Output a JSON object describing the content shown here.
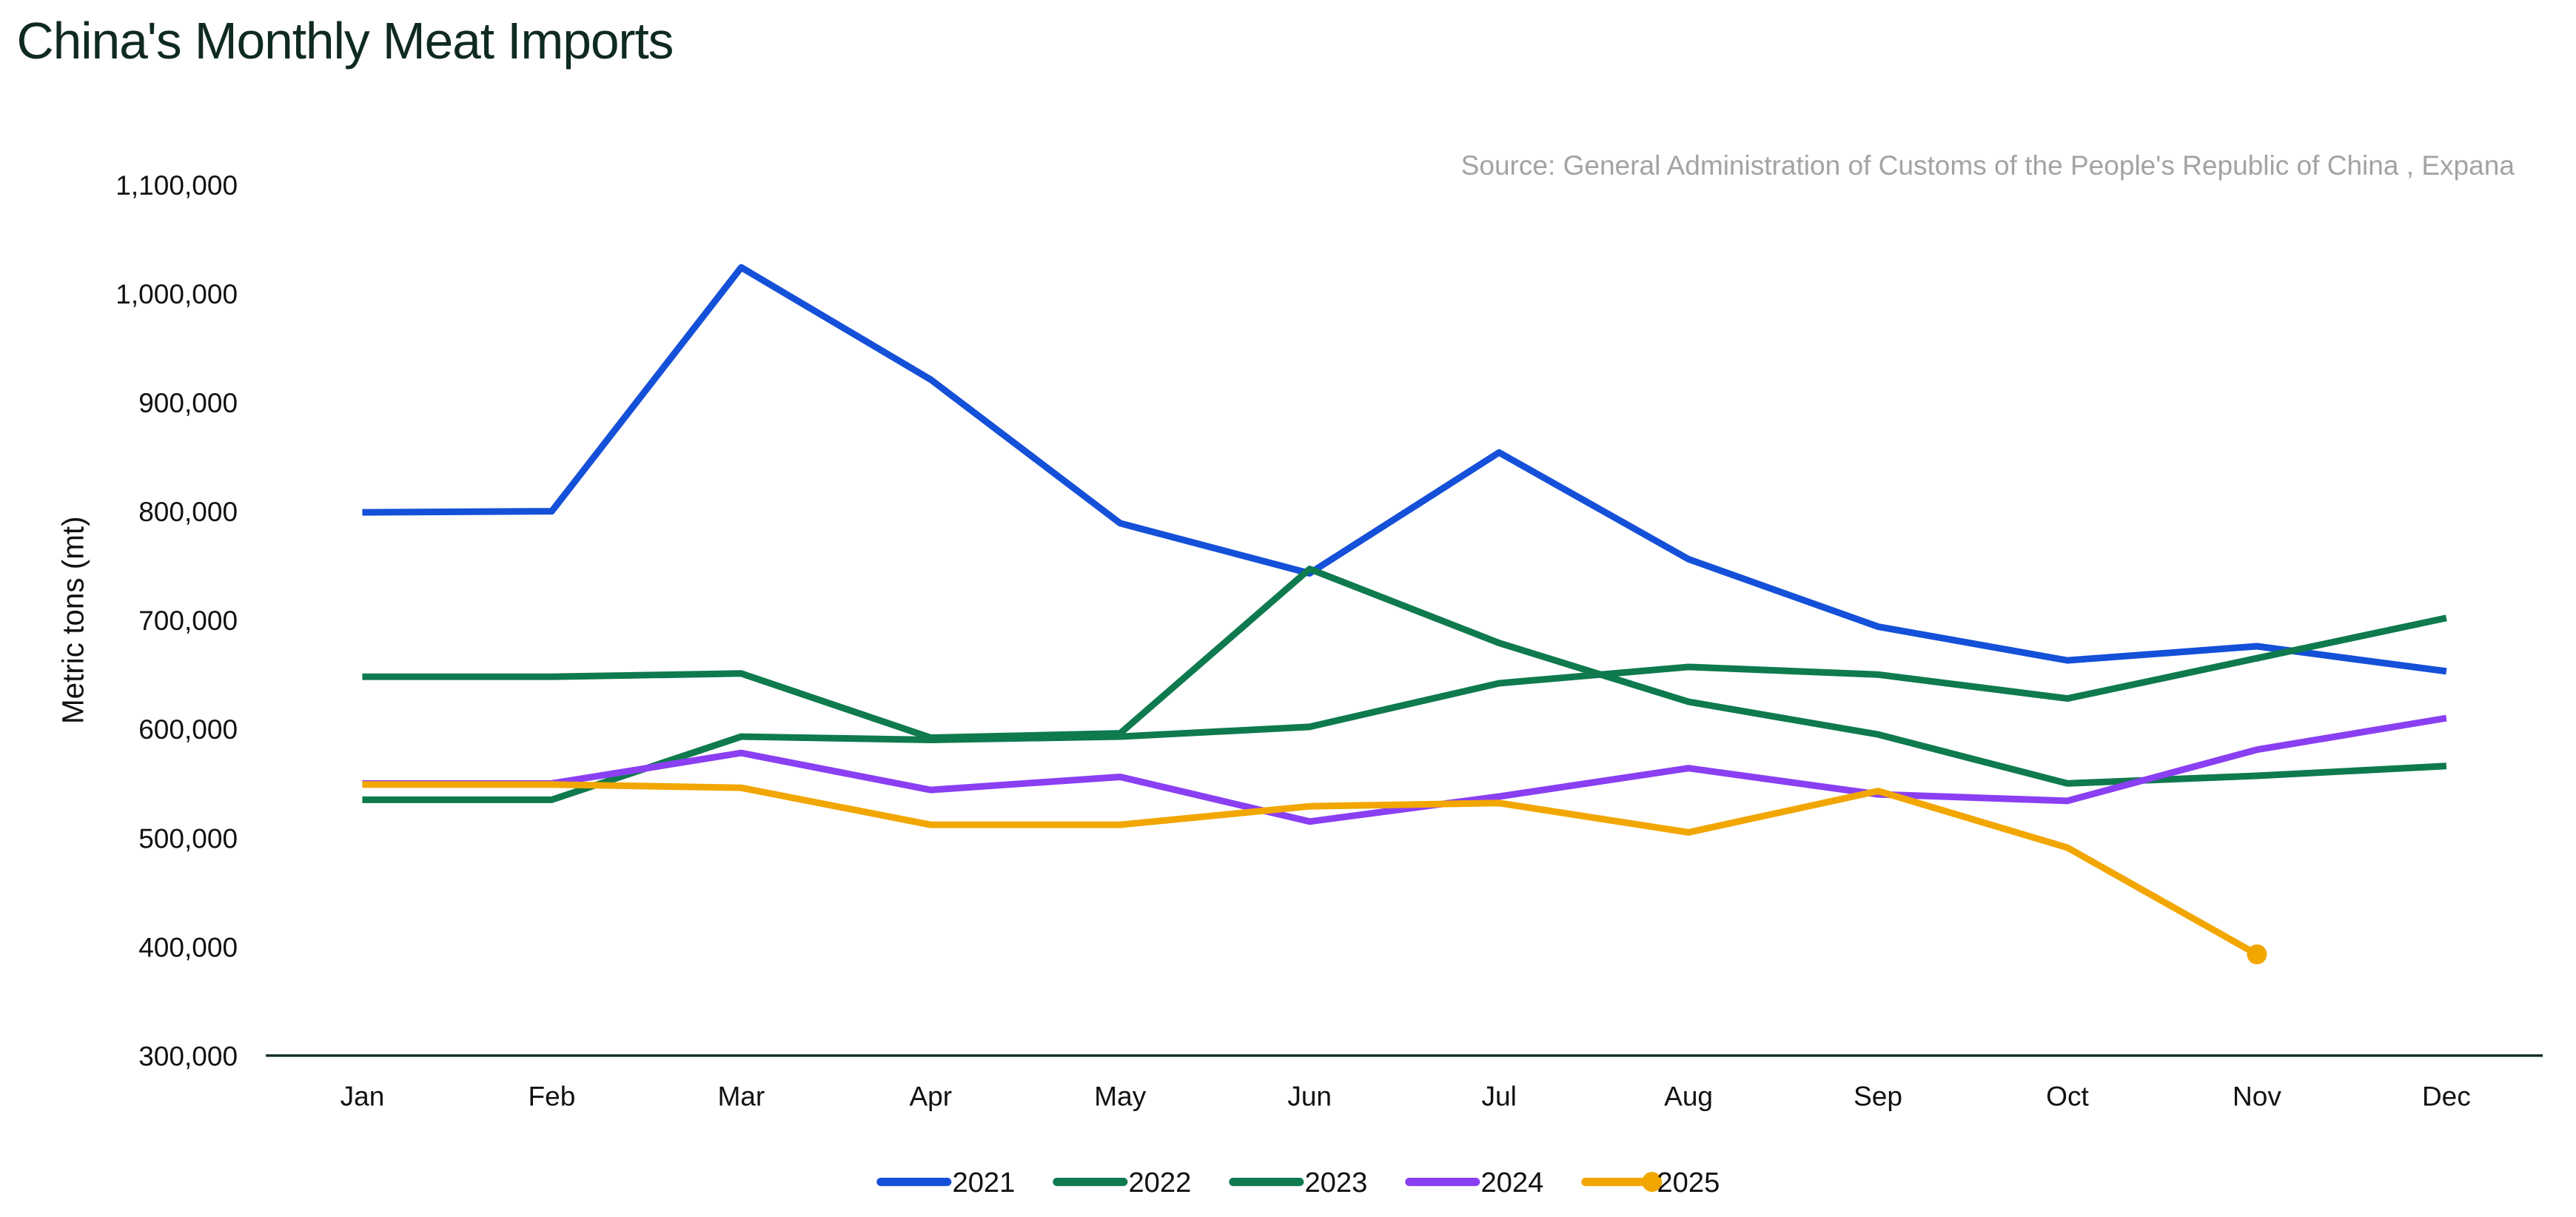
{
  "chart_data": {
    "type": "line",
    "title": "China's Monthly Meat Imports",
    "source": "Source: General Administration of Customs of the People's Republic of China , Expana",
    "xlabel": "",
    "ylabel": "Metric  tons (mt)",
    "ylim": [
      300000,
      1100000
    ],
    "yticks": [
      300000,
      400000,
      500000,
      600000,
      700000,
      800000,
      900000,
      1000000,
      1100000
    ],
    "ytick_labels": [
      "300,000",
      "400,000",
      "500,000",
      "600,000",
      "700,000",
      "800,000",
      "900,000",
      "1,000,000",
      "1,100,000"
    ],
    "categories": [
      "Jan",
      "Feb",
      "Mar",
      "Apr",
      "May",
      "Jun",
      "Jul",
      "Aug",
      "Sep",
      "Oct",
      "Nov",
      "Dec"
    ],
    "grid": false,
    "legend": "bottom-center",
    "series": [
      {
        "name": "2021",
        "color": "#1450d8",
        "values": [
          799000,
          800000,
          1024000,
          921000,
          789000,
          743000,
          854000,
          756000,
          694000,
          663000,
          676000,
          653000
        ]
      },
      {
        "name": "2022",
        "color": "#0e7a4e",
        "values": [
          648000,
          648000,
          651000,
          592000,
          596000,
          747000,
          679000,
          625000,
          595000,
          550000,
          557000,
          566000
        ]
      },
      {
        "name": "2023",
        "color": "#0e7a4e",
        "values": [
          535000,
          535000,
          593000,
          590000,
          593000,
          602000,
          642000,
          657000,
          650000,
          628000,
          665000,
          702000
        ]
      },
      {
        "name": "2024",
        "color": "#8a3ff2",
        "values": [
          550000,
          550000,
          578000,
          544000,
          556000,
          515000,
          538000,
          564000,
          540000,
          534000,
          581000,
          610000
        ]
      },
      {
        "name": "2025",
        "color": "#f2a600",
        "marker": "end-dot",
        "values": [
          549000,
          549000,
          546000,
          512000,
          512000,
          529000,
          532000,
          505000,
          543000,
          491000,
          393000,
          null
        ]
      }
    ]
  }
}
